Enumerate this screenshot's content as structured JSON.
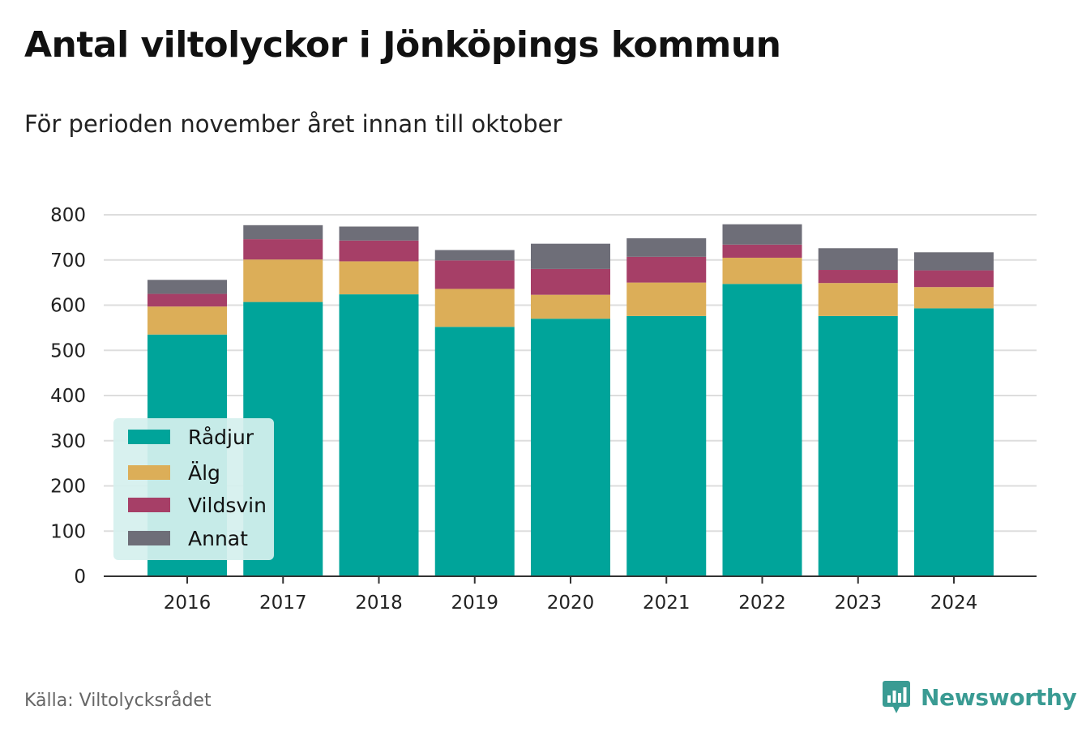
{
  "header": {
    "title": "Antal viltolyckor i Jönköpings kommun",
    "subtitle": "För perioden november året innan till oktober"
  },
  "footer": {
    "source": "Källa: Viltolycksrådet",
    "brand": "Newsworthy"
  },
  "colors": {
    "Rådjur": "#00a49a",
    "Älg": "#dcae58",
    "Vildsvin": "#a63f67",
    "Annat": "#6e6e78",
    "brand": "#3a9b93",
    "grid": "#dddddd"
  },
  "chart_data": {
    "type": "bar",
    "stacked": true,
    "title": "Antal viltolyckor i Jönköpings kommun",
    "subtitle": "För perioden november året innan till oktober",
    "categories": [
      "2016",
      "2017",
      "2018",
      "2019",
      "2020",
      "2021",
      "2022",
      "2023",
      "2024"
    ],
    "series": [
      {
        "name": "Rådjur",
        "values": [
          535,
          607,
          624,
          552,
          570,
          576,
          647,
          576,
          593
        ]
      },
      {
        "name": "Älg",
        "values": [
          62,
          94,
          73,
          84,
          53,
          74,
          58,
          73,
          47
        ]
      },
      {
        "name": "Vildsvin",
        "values": [
          28,
          45,
          46,
          63,
          57,
          57,
          29,
          29,
          37
        ]
      },
      {
        "name": "Annat",
        "values": [
          31,
          31,
          31,
          23,
          56,
          41,
          45,
          48,
          40
        ]
      }
    ],
    "yticks": [
      "0",
      "100",
      "200",
      "300",
      "400",
      "500",
      "600",
      "700",
      "800"
    ],
    "ylim": [
      0,
      800
    ],
    "xlabel": "",
    "ylabel": "",
    "grid": true,
    "legend_position": "bottom-left"
  }
}
